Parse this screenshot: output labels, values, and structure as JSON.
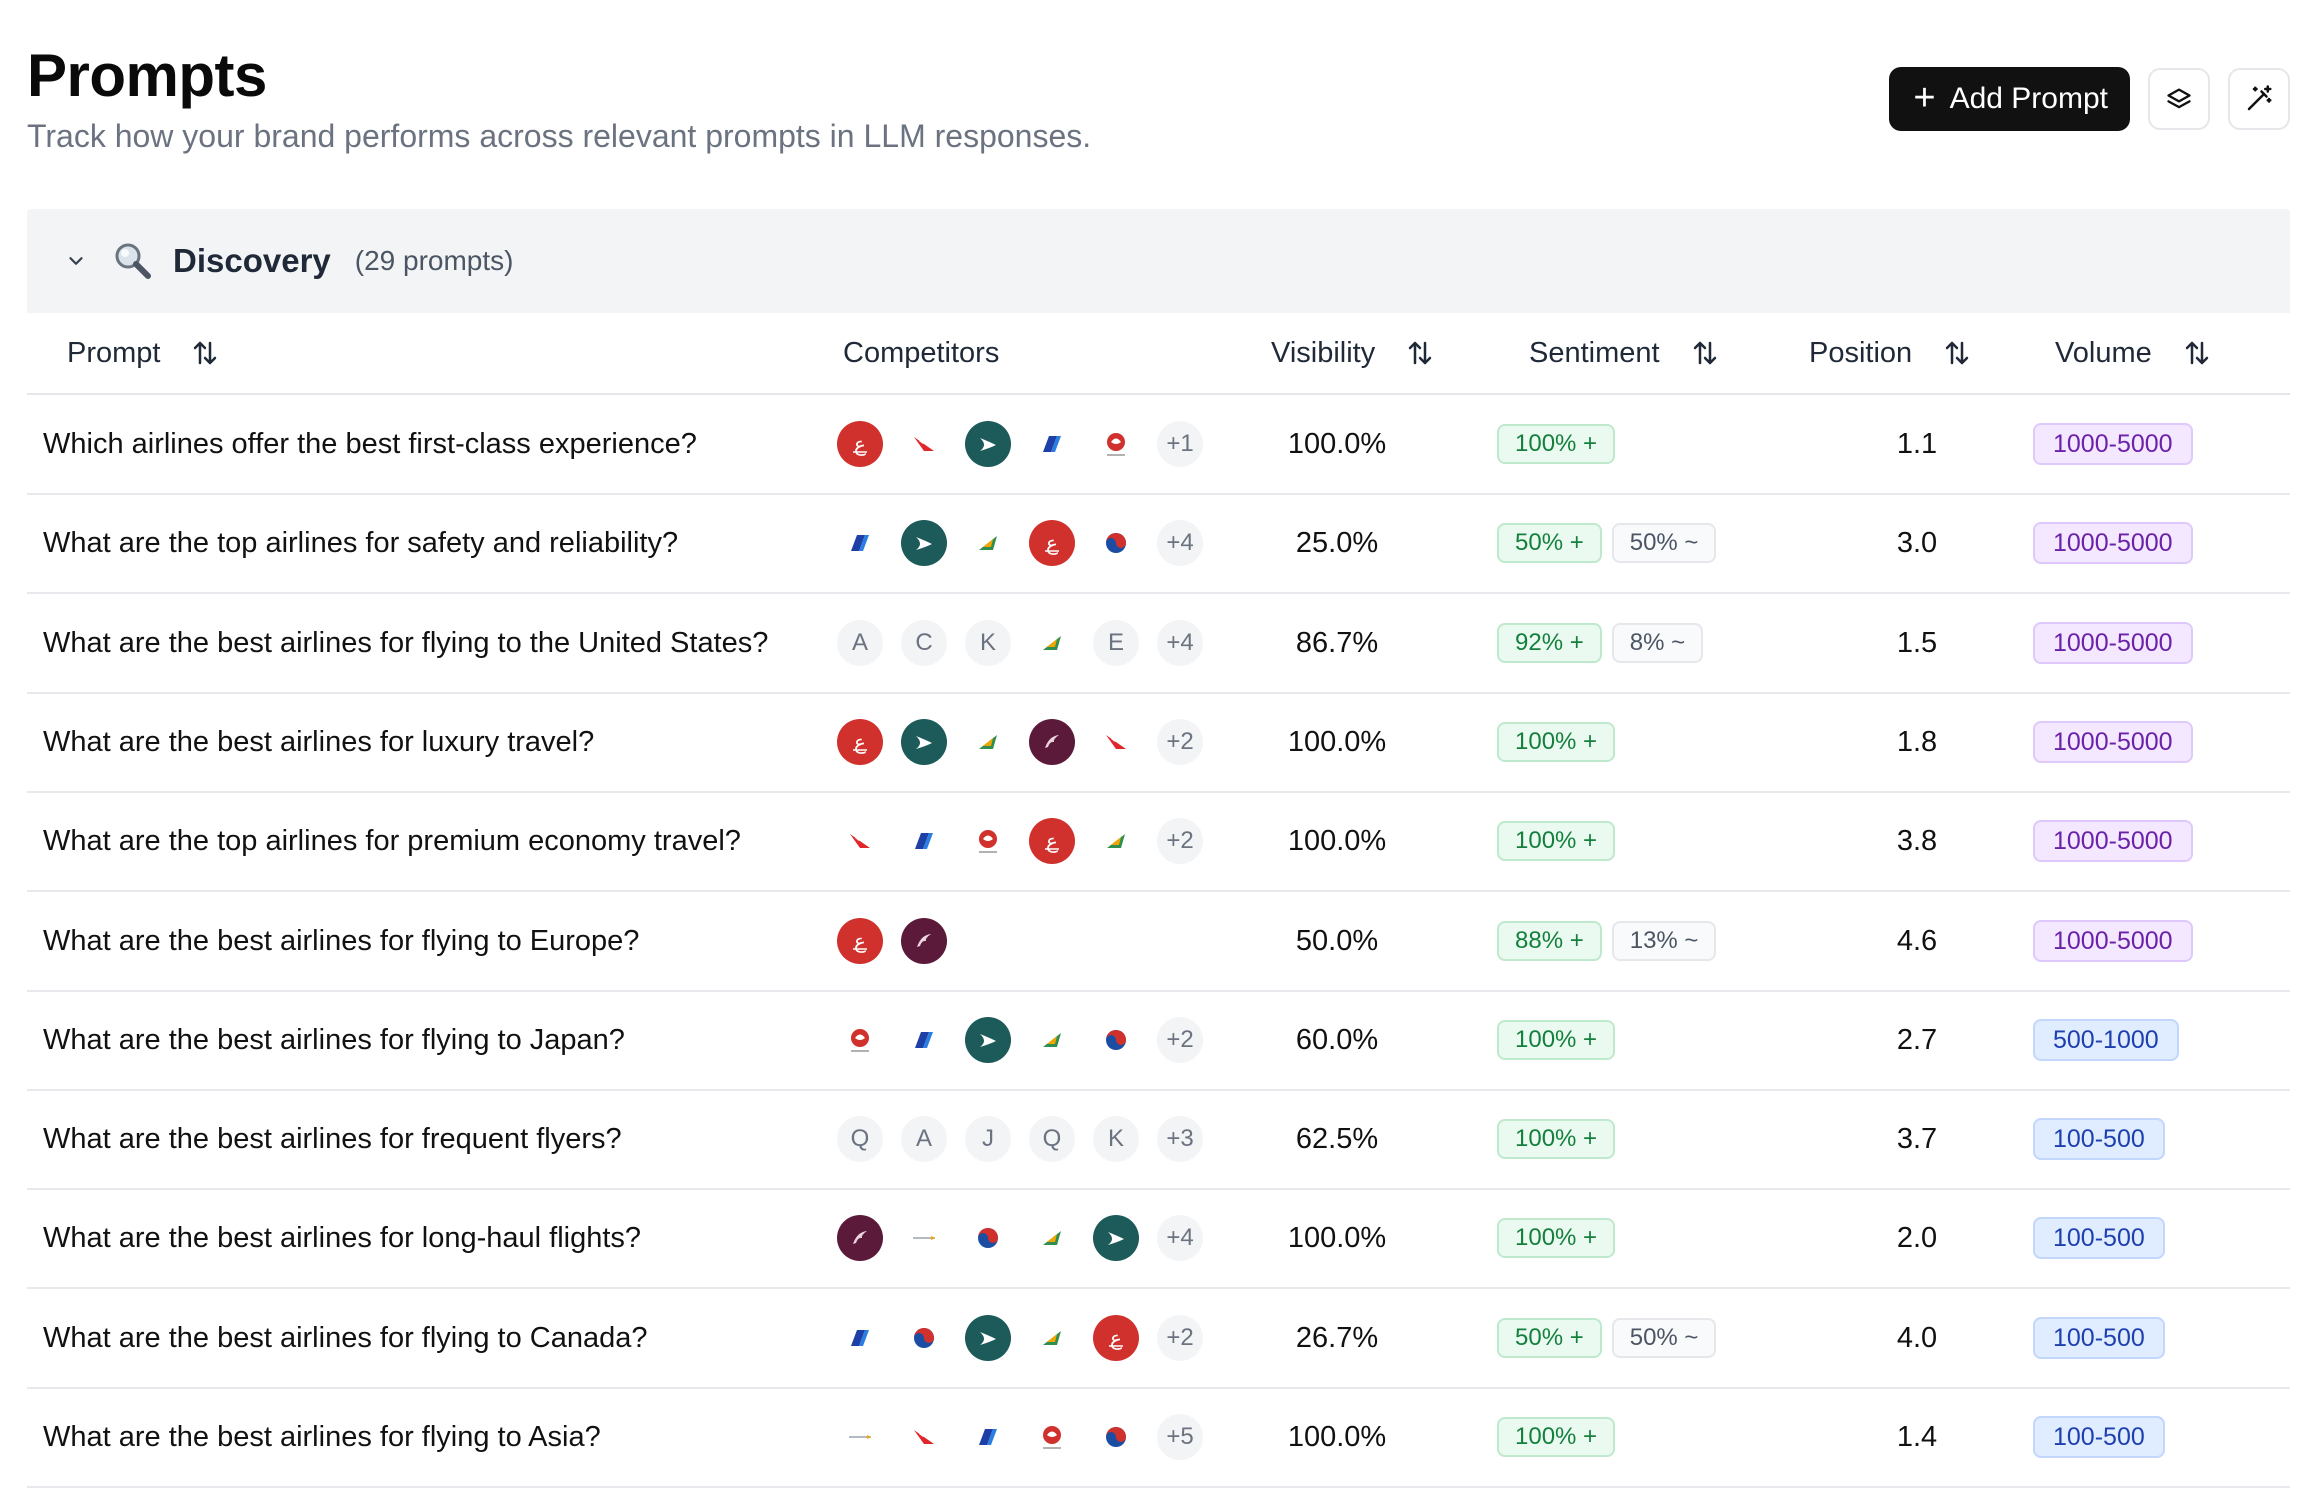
{
  "header": {
    "title": "Prompts",
    "subtitle": "Track how your brand performs across relevant prompts in LLM responses.",
    "add_prompt_label": "Add Prompt"
  },
  "group": {
    "title": "Discovery",
    "count": "(29 prompts)"
  },
  "columns": {
    "prompt": "Prompt",
    "competitors": "Competitors",
    "visibility": "Visibility",
    "sentiment": "Sentiment",
    "position": "Position",
    "volume": "Volume"
  },
  "colors": {
    "positive": "#15803d",
    "volume_high": "#6b21a8",
    "volume_low": "#1e40af",
    "primary_button": "#111111"
  },
  "rows": [
    {
      "prompt": "Which airlines offer the best first-class experience?",
      "competitors": [
        {
          "kind": "red",
          "icon": "emirates-logo-icon"
        },
        {
          "kind": "plain",
          "icon": "qantas-logo-icon"
        },
        {
          "kind": "teal",
          "icon": "cathay-pacific-logo-icon"
        },
        {
          "kind": "plain",
          "icon": "ana-logo-icon"
        },
        {
          "kind": "plain",
          "icon": "jal-logo-icon"
        }
      ],
      "more": "+1",
      "visibility": "100.0%",
      "sentiment": [
        {
          "label": "100% +",
          "type": "pos"
        }
      ],
      "position": "1.1",
      "volume": "1000-5000",
      "volume_tier": "purple"
    },
    {
      "prompt": "What are the top airlines for safety and reliability?",
      "competitors": [
        {
          "kind": "plain",
          "icon": "ana-logo-icon"
        },
        {
          "kind": "teal",
          "icon": "cathay-pacific-logo-icon"
        },
        {
          "kind": "plain",
          "icon": "eva-air-logo-icon"
        },
        {
          "kind": "red",
          "icon": "emirates-logo-icon"
        },
        {
          "kind": "plain",
          "icon": "korean-air-logo-icon"
        }
      ],
      "more": "+4",
      "visibility": "25.0%",
      "sentiment": [
        {
          "label": "50% +",
          "type": "pos"
        },
        {
          "label": "50% ~",
          "type": "neu"
        }
      ],
      "position": "3.0",
      "volume": "1000-5000",
      "volume_tier": "purple"
    },
    {
      "prompt": "What are the best airlines for flying to the United States?",
      "competitors": [
        {
          "kind": "letter",
          "letter": "A"
        },
        {
          "kind": "letter",
          "letter": "C"
        },
        {
          "kind": "letter",
          "letter": "K"
        },
        {
          "kind": "plain",
          "icon": "eva-air-logo-icon"
        },
        {
          "kind": "letter",
          "letter": "E"
        }
      ],
      "more": "+4",
      "visibility": "86.7%",
      "sentiment": [
        {
          "label": "92% +",
          "type": "pos"
        },
        {
          "label": "8% ~",
          "type": "neu"
        }
      ],
      "position": "1.5",
      "volume": "1000-5000",
      "volume_tier": "purple"
    },
    {
      "prompt": "What are the best airlines for luxury travel?",
      "competitors": [
        {
          "kind": "red",
          "icon": "emirates-logo-icon"
        },
        {
          "kind": "teal",
          "icon": "cathay-pacific-logo-icon"
        },
        {
          "kind": "plain",
          "icon": "eva-air-logo-icon"
        },
        {
          "kind": "maroon",
          "icon": "qatar-airways-logo-icon"
        },
        {
          "kind": "plain",
          "icon": "qantas-logo-icon"
        }
      ],
      "more": "+2",
      "visibility": "100.0%",
      "sentiment": [
        {
          "label": "100% +",
          "type": "pos"
        }
      ],
      "position": "1.8",
      "volume": "1000-5000",
      "volume_tier": "purple"
    },
    {
      "prompt": "What are the top airlines for premium economy travel?",
      "competitors": [
        {
          "kind": "plain",
          "icon": "qantas-logo-icon"
        },
        {
          "kind": "plain",
          "icon": "ana-logo-icon"
        },
        {
          "kind": "plain",
          "icon": "jal-logo-icon"
        },
        {
          "kind": "red",
          "icon": "emirates-logo-icon"
        },
        {
          "kind": "plain",
          "icon": "eva-air-logo-icon"
        }
      ],
      "more": "+2",
      "visibility": "100.0%",
      "sentiment": [
        {
          "label": "100% +",
          "type": "pos"
        }
      ],
      "position": "3.8",
      "volume": "1000-5000",
      "volume_tier": "purple"
    },
    {
      "prompt": "What are the best airlines for flying to Europe?",
      "competitors": [
        {
          "kind": "red",
          "icon": "emirates-logo-icon"
        },
        {
          "kind": "maroon",
          "icon": "qatar-airways-logo-icon"
        }
      ],
      "more": "",
      "visibility": "50.0%",
      "sentiment": [
        {
          "label": "88% +",
          "type": "pos"
        },
        {
          "label": "13% ~",
          "type": "neu"
        }
      ],
      "position": "4.6",
      "volume": "1000-5000",
      "volume_tier": "purple"
    },
    {
      "prompt": "What are the best airlines for flying to Japan?",
      "competitors": [
        {
          "kind": "plain",
          "icon": "jal-logo-icon"
        },
        {
          "kind": "plain",
          "icon": "ana-logo-icon"
        },
        {
          "kind": "teal",
          "icon": "cathay-pacific-logo-icon"
        },
        {
          "kind": "plain",
          "icon": "eva-air-logo-icon"
        },
        {
          "kind": "plain",
          "icon": "korean-air-logo-icon"
        }
      ],
      "more": "+2",
      "visibility": "60.0%",
      "sentiment": [
        {
          "label": "100% +",
          "type": "pos"
        }
      ],
      "position": "2.7",
      "volume": "500-1000",
      "volume_tier": "blue"
    },
    {
      "prompt": "What are the best airlines for frequent flyers?",
      "competitors": [
        {
          "kind": "letter",
          "letter": "Q"
        },
        {
          "kind": "letter",
          "letter": "A"
        },
        {
          "kind": "letter",
          "letter": "J"
        },
        {
          "kind": "letter",
          "letter": "Q"
        },
        {
          "kind": "letter",
          "letter": "K"
        }
      ],
      "more": "+3",
      "visibility": "62.5%",
      "sentiment": [
        {
          "label": "100% +",
          "type": "pos"
        }
      ],
      "position": "3.7",
      "volume": "100-500",
      "volume_tier": "blue"
    },
    {
      "prompt": "What are the best airlines for long-haul flights?",
      "competitors": [
        {
          "kind": "maroon",
          "icon": "qatar-airways-logo-icon"
        },
        {
          "kind": "plain",
          "icon": "singapore-airlines-logo-icon"
        },
        {
          "kind": "plain",
          "icon": "korean-air-logo-icon"
        },
        {
          "kind": "plain",
          "icon": "eva-air-logo-icon"
        },
        {
          "kind": "teal",
          "icon": "cathay-pacific-logo-icon"
        }
      ],
      "more": "+4",
      "visibility": "100.0%",
      "sentiment": [
        {
          "label": "100% +",
          "type": "pos"
        }
      ],
      "position": "2.0",
      "volume": "100-500",
      "volume_tier": "blue"
    },
    {
      "prompt": "What are the best airlines for flying to Canada?",
      "competitors": [
        {
          "kind": "plain",
          "icon": "ana-logo-icon"
        },
        {
          "kind": "plain",
          "icon": "korean-air-logo-icon"
        },
        {
          "kind": "teal",
          "icon": "cathay-pacific-logo-icon"
        },
        {
          "kind": "plain",
          "icon": "eva-air-logo-icon"
        },
        {
          "kind": "red",
          "icon": "emirates-logo-icon"
        }
      ],
      "more": "+2",
      "visibility": "26.7%",
      "sentiment": [
        {
          "label": "50% +",
          "type": "pos"
        },
        {
          "label": "50% ~",
          "type": "neu"
        }
      ],
      "position": "4.0",
      "volume": "100-500",
      "volume_tier": "blue"
    },
    {
      "prompt": "What are the best airlines for flying to Asia?",
      "competitors": [
        {
          "kind": "plain",
          "icon": "singapore-airlines-logo-icon"
        },
        {
          "kind": "plain",
          "icon": "qantas-logo-icon"
        },
        {
          "kind": "plain",
          "icon": "ana-logo-icon"
        },
        {
          "kind": "plain",
          "icon": "jal-logo-icon"
        },
        {
          "kind": "plain",
          "icon": "korean-air-logo-icon"
        }
      ],
      "more": "+5",
      "visibility": "100.0%",
      "sentiment": [
        {
          "label": "100% +",
          "type": "pos"
        }
      ],
      "position": "1.4",
      "volume": "100-500",
      "volume_tier": "blue"
    }
  ]
}
